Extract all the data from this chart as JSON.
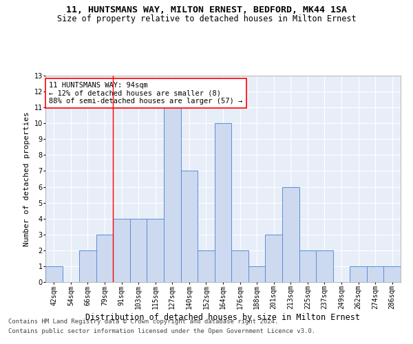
{
  "title1": "11, HUNTSMANS WAY, MILTON ERNEST, BEDFORD, MK44 1SA",
  "title2": "Size of property relative to detached houses in Milton Ernest",
  "xlabel": "Distribution of detached houses by size in Milton Ernest",
  "ylabel": "Number of detached properties",
  "categories": [
    "42sqm",
    "54sqm",
    "66sqm",
    "79sqm",
    "91sqm",
    "103sqm",
    "115sqm",
    "127sqm",
    "140sqm",
    "152sqm",
    "164sqm",
    "176sqm",
    "188sqm",
    "201sqm",
    "213sqm",
    "225sqm",
    "237sqm",
    "249sqm",
    "262sqm",
    "274sqm",
    "286sqm"
  ],
  "values": [
    1,
    0,
    2,
    3,
    4,
    4,
    4,
    11,
    7,
    2,
    10,
    2,
    1,
    3,
    6,
    2,
    2,
    0,
    1,
    1,
    1
  ],
  "bar_color": "#ccd9ef",
  "bar_edge_color": "#5b8dd9",
  "highlight_line_index": 4,
  "annotation_text": "11 HUNTSMANS WAY: 94sqm\n← 12% of detached houses are smaller (8)\n88% of semi-detached houses are larger (57) →",
  "annotation_box_color": "white",
  "annotation_box_edge_color": "red",
  "ylim": [
    0,
    13
  ],
  "yticks": [
    0,
    1,
    2,
    3,
    4,
    5,
    6,
    7,
    8,
    9,
    10,
    11,
    12,
    13
  ],
  "footer1": "Contains HM Land Registry data © Crown copyright and database right 2024.",
  "footer2": "Contains public sector information licensed under the Open Government Licence v3.0.",
  "bg_color": "#e8eef8",
  "grid_color": "#ffffff",
  "title1_fontsize": 9.5,
  "title2_fontsize": 8.5,
  "xlabel_fontsize": 8.5,
  "ylabel_fontsize": 8,
  "tick_fontsize": 7,
  "annotation_fontsize": 7.5,
  "footer_fontsize": 6.5
}
